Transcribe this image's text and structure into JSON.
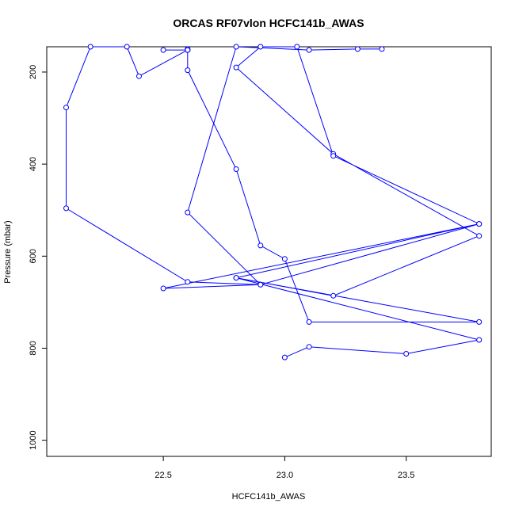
{
  "chart_data": {
    "type": "line",
    "title": "ORCAS RF07vlon HCFC141b_AWAS",
    "xlabel": "HCFC141b_AWAS",
    "ylabel": "Pressure (mbar)",
    "xlim": [
      22.02,
      23.85
    ],
    "ylim": [
      1035,
      145
    ],
    "y_reversed": true,
    "x_ticks": [
      "22.5",
      "23.0",
      "23.5"
    ],
    "x_tick_values": [
      22.5,
      23.0,
      23.5
    ],
    "y_ticks": [
      "200",
      "400",
      "600",
      "800",
      "1000"
    ],
    "y_tick_values": [
      200,
      400,
      600,
      800,
      1000
    ],
    "grid": false,
    "line_color": "#0000ff",
    "marker": "open-circle",
    "series": [
      {
        "points": [
          [
            23.0,
            820
          ],
          [
            23.1,
            797
          ],
          [
            23.5,
            812
          ],
          [
            23.8,
            782
          ],
          [
            22.8,
            647
          ],
          [
            23.8,
            530
          ],
          [
            22.5,
            670
          ],
          [
            22.9,
            662
          ],
          [
            22.6,
            656
          ],
          [
            22.1,
            496
          ],
          [
            22.1,
            277
          ],
          [
            22.2,
            145
          ],
          [
            22.35,
            145
          ],
          [
            22.4,
            209
          ],
          [
            22.6,
            152
          ],
          [
            22.6,
            150
          ],
          [
            22.6,
            152
          ],
          [
            22.5,
            152
          ],
          [
            22.6,
            152
          ],
          [
            22.6,
            196
          ],
          [
            22.8,
            411
          ],
          [
            22.9,
            577
          ],
          [
            23.0,
            606
          ],
          [
            23.1,
            743
          ],
          [
            23.8,
            743
          ],
          [
            22.8,
            647
          ],
          [
            23.2,
            686
          ],
          [
            23.8,
            556
          ],
          [
            23.2,
            378
          ],
          [
            22.8,
            190
          ],
          [
            22.9,
            145
          ],
          [
            23.05,
            145
          ],
          [
            23.2,
            382
          ],
          [
            23.8,
            530
          ],
          [
            22.9,
            662
          ],
          [
            22.6,
            505
          ],
          [
            22.8,
            145
          ],
          [
            23.1,
            152
          ],
          [
            23.3,
            150
          ],
          [
            23.4,
            150
          ]
        ]
      }
    ]
  }
}
